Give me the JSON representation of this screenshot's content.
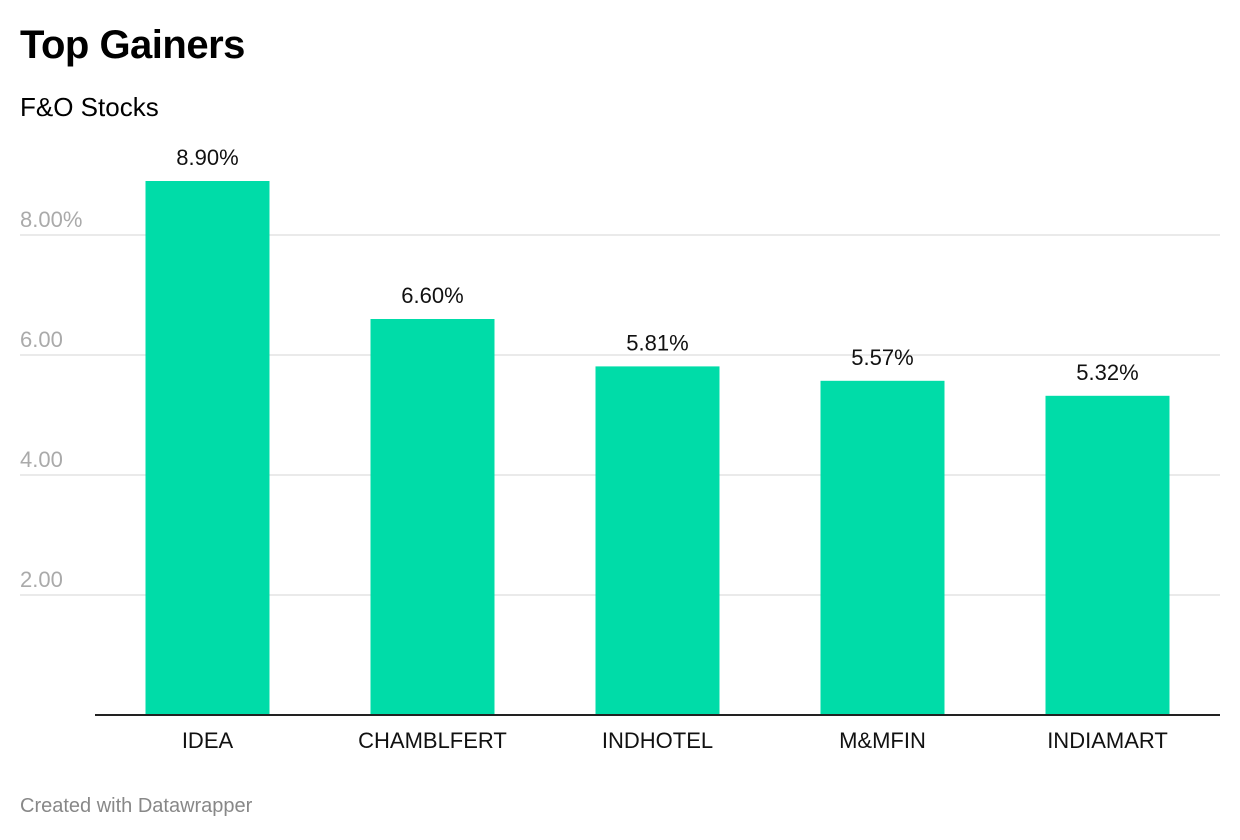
{
  "header": {
    "title": "Top Gainers",
    "subtitle": "F&O Stocks"
  },
  "footer": {
    "credit": "Created with Datawrapper"
  },
  "colors": {
    "bar": "#00dca8",
    "grid": "#e3e3e3",
    "axis": "#222222",
    "tick_text": "#aaaaaa",
    "label_text": "#111111"
  },
  "chart_data": {
    "type": "bar",
    "title": "Top Gainers",
    "subtitle": "F&O Stocks",
    "categories": [
      "IDEA",
      "CHAMBLFERT",
      "INDHOTEL",
      "M&MFIN",
      "INDIAMART"
    ],
    "values": [
      8.9,
      6.6,
      5.81,
      5.57,
      5.32
    ],
    "value_labels": [
      "8.90%",
      "6.60%",
      "5.81%",
      "5.57%",
      "5.32%"
    ],
    "y_ticks": [
      2,
      4,
      6,
      8
    ],
    "y_tick_labels": [
      "2.00",
      "4.00",
      "6.00",
      "8.00%"
    ],
    "ylim": [
      0,
      8.9
    ],
    "xlabel": "",
    "ylabel": "",
    "grid": true,
    "legend": "none"
  }
}
